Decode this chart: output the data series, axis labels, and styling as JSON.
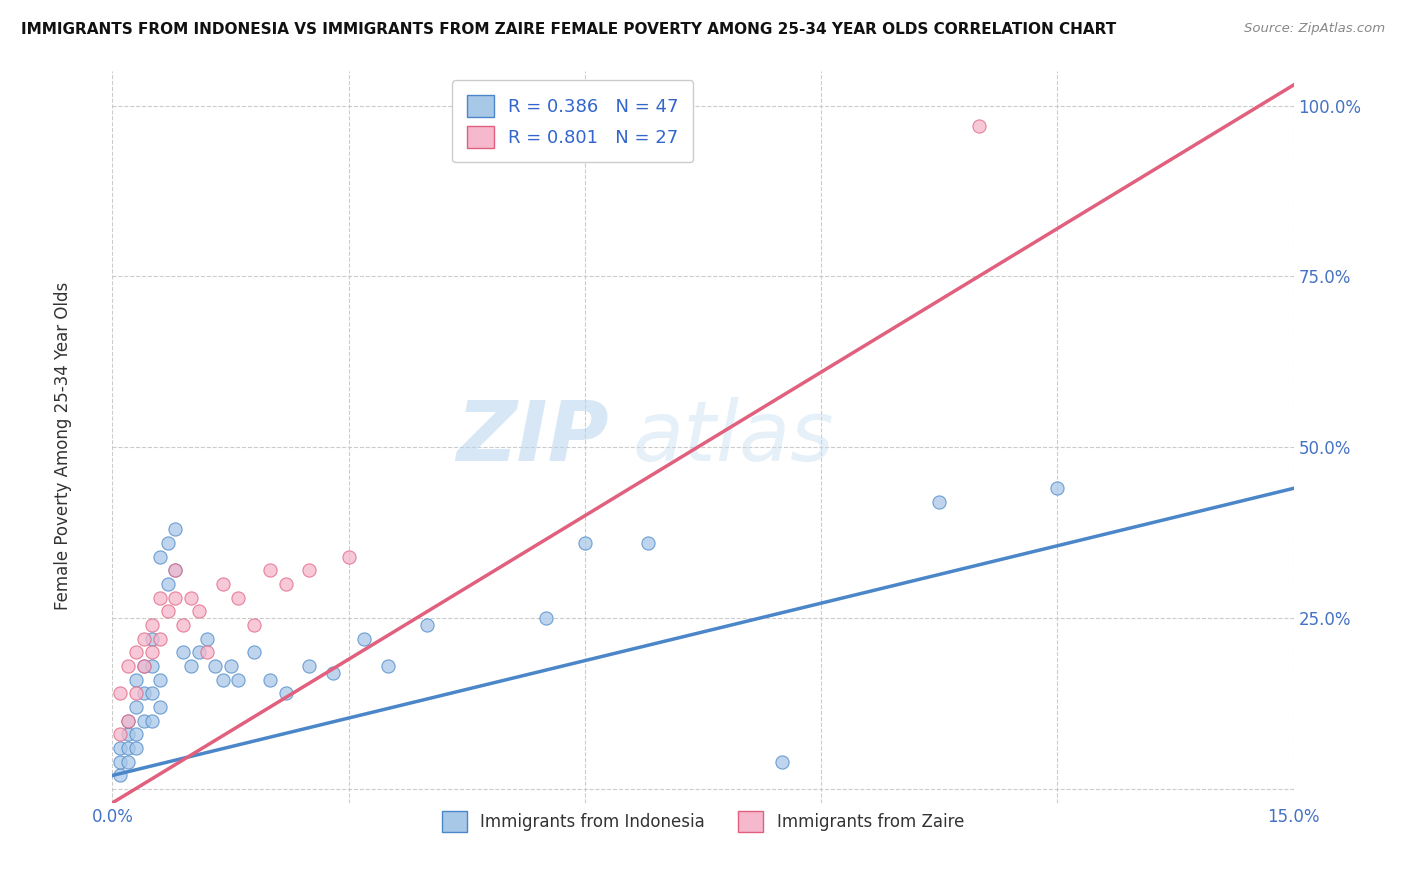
{
  "title": "IMMIGRANTS FROM INDONESIA VS IMMIGRANTS FROM ZAIRE FEMALE POVERTY AMONG 25-34 YEAR OLDS CORRELATION CHART",
  "source": "Source: ZipAtlas.com",
  "ylabel": "Female Poverty Among 25-34 Year Olds",
  "xlim": [
    0.0,
    0.15
  ],
  "ylim": [
    -0.02,
    1.05
  ],
  "xticks": [
    0.0,
    0.03,
    0.06,
    0.09,
    0.12,
    0.15
  ],
  "xticklabels": [
    "0.0%",
    "",
    "",
    "",
    "",
    "15.0%"
  ],
  "yticks": [
    0.0,
    0.25,
    0.5,
    0.75,
    1.0
  ],
  "yticklabels": [
    "",
    "25.0%",
    "50.0%",
    "75.0%",
    "100.0%"
  ],
  "watermark1": "ZIP",
  "watermark2": "atlas",
  "indonesia_color": "#a8c8e8",
  "zaire_color": "#f5b8cc",
  "indonesia_line_color": "#4a86c8",
  "zaire_line_color": "#e0607e",
  "R_indonesia": 0.386,
  "N_indonesia": 47,
  "R_zaire": 0.801,
  "N_zaire": 27,
  "legend_label_indonesia": "Immigrants from Indonesia",
  "legend_label_zaire": "Immigrants from Zaire",
  "background_color": "#ffffff",
  "grid_color": "#cccccc",
  "indonesia_x": [
    0.001,
    0.001,
    0.001,
    0.002,
    0.002,
    0.002,
    0.002,
    0.003,
    0.003,
    0.003,
    0.003,
    0.004,
    0.004,
    0.004,
    0.005,
    0.005,
    0.005,
    0.005,
    0.006,
    0.006,
    0.006,
    0.007,
    0.007,
    0.008,
    0.008,
    0.009,
    0.01,
    0.011,
    0.012,
    0.013,
    0.014,
    0.015,
    0.016,
    0.018,
    0.02,
    0.022,
    0.025,
    0.028,
    0.032,
    0.035,
    0.04,
    0.055,
    0.06,
    0.068,
    0.085,
    0.105,
    0.12
  ],
  "indonesia_y": [
    0.02,
    0.04,
    0.06,
    0.04,
    0.06,
    0.08,
    0.1,
    0.06,
    0.08,
    0.12,
    0.16,
    0.1,
    0.14,
    0.18,
    0.1,
    0.14,
    0.18,
    0.22,
    0.12,
    0.16,
    0.34,
    0.3,
    0.36,
    0.32,
    0.38,
    0.2,
    0.18,
    0.2,
    0.22,
    0.18,
    0.16,
    0.18,
    0.16,
    0.2,
    0.16,
    0.14,
    0.18,
    0.17,
    0.22,
    0.18,
    0.24,
    0.25,
    0.36,
    0.36,
    0.04,
    0.42,
    0.44
  ],
  "zaire_x": [
    0.001,
    0.001,
    0.002,
    0.002,
    0.003,
    0.003,
    0.004,
    0.004,
    0.005,
    0.005,
    0.006,
    0.006,
    0.007,
    0.008,
    0.008,
    0.009,
    0.01,
    0.011,
    0.012,
    0.014,
    0.016,
    0.018,
    0.02,
    0.022,
    0.025,
    0.03,
    0.11
  ],
  "zaire_y": [
    0.08,
    0.14,
    0.1,
    0.18,
    0.14,
    0.2,
    0.18,
    0.22,
    0.2,
    0.24,
    0.22,
    0.28,
    0.26,
    0.28,
    0.32,
    0.24,
    0.28,
    0.26,
    0.2,
    0.3,
    0.28,
    0.24,
    0.32,
    0.3,
    0.32,
    0.34,
    0.97
  ],
  "indo_line_x": [
    0.0,
    0.15
  ],
  "indo_line_y": [
    0.02,
    0.44
  ],
  "zaire_line_x": [
    0.0,
    0.15
  ],
  "zaire_line_y": [
    -0.02,
    1.03
  ]
}
